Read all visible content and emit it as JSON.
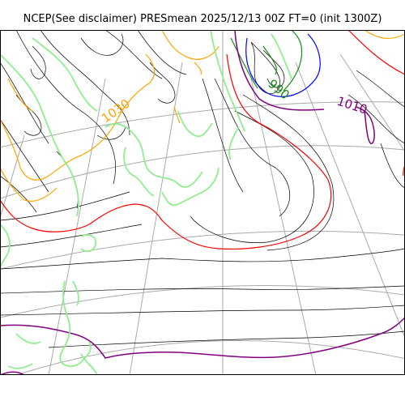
{
  "title": "NCEP(See disclaimer) PRESmean 2025/12/13 00Z FT=0 (init 1300Z)",
  "map": {
    "contour_labels": [
      "990",
      "1010",
      "1030"
    ],
    "colors": {
      "coastline": "#90ee90",
      "isobar": "#000000",
      "isobar_990": "#1a8c1a",
      "isobar_1010": "#800080",
      "isobar_1020": "#ff0000",
      "isobar_1030": "#ffa500",
      "isobar_low": "#0000ff",
      "graticule": "#aaaaaa"
    }
  }
}
